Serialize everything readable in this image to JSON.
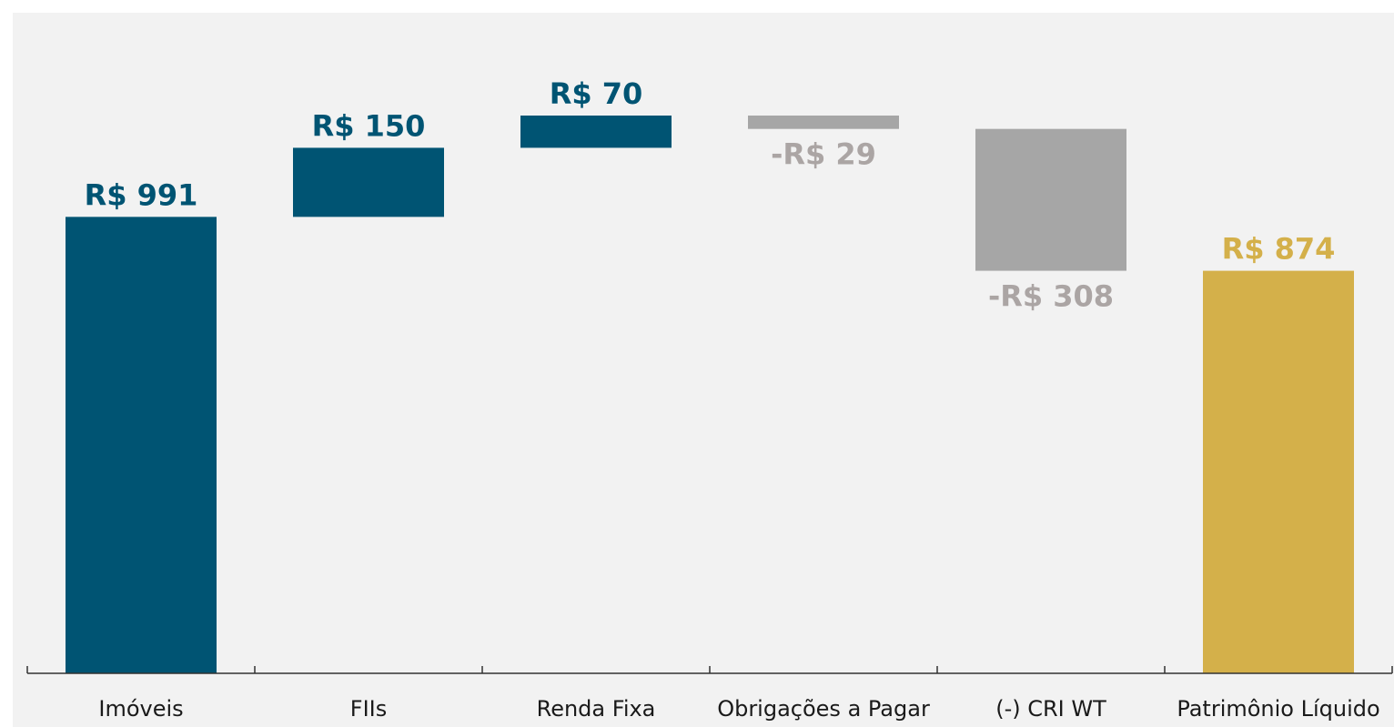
{
  "chart_data": {
    "type": "waterfall",
    "categories": [
      "Imóveis",
      "FIIs",
      "Renda Fixa",
      "Obrigações a Pagar",
      "(-) CRI WT",
      "Patrimônio Líquido"
    ],
    "values": [
      991,
      150,
      70,
      -29,
      -308,
      874
    ],
    "value_labels": [
      "R$ 991",
      "R$ 150",
      "R$ 70",
      "-R$ 29",
      "-R$ 308",
      "R$ 874"
    ],
    "measure": [
      "relative",
      "relative",
      "relative",
      "relative",
      "relative",
      "total"
    ],
    "colors": [
      "#005473",
      "#005473",
      "#005473",
      "#a6a6a6",
      "#a6a6a6",
      "#d4b04a"
    ],
    "label_colors": [
      "#005473",
      "#005473",
      "#005473",
      "#aba5a4",
      "#aba5a4",
      "#d4b04a"
    ]
  }
}
